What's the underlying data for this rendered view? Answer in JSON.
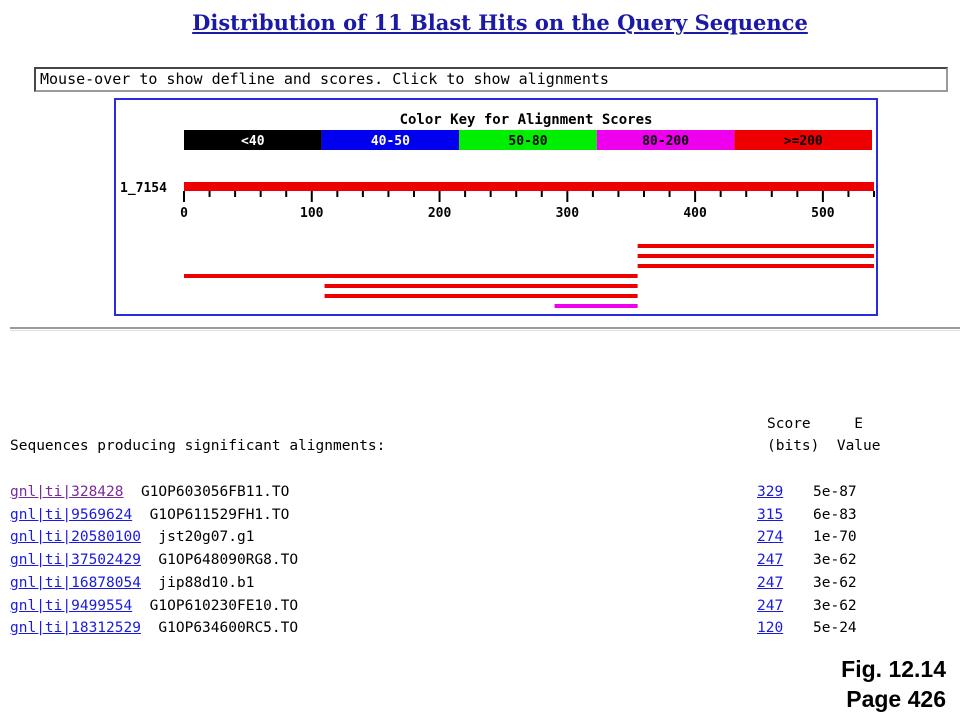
{
  "title": "Distribution of 11 Blast Hits on the Query Sequence",
  "defline_message": "Mouse-over to show defline and scores. Click to show alignments",
  "color_key": {
    "title": "Color Key for Alignment Scores",
    "bins": [
      {
        "label": "<40",
        "color": "#000000",
        "text_color": "#ffffff"
      },
      {
        "label": "40-50",
        "color": "#0000ee",
        "text_color": "#ffffff"
      },
      {
        "label": "50-80",
        "color": "#00ee00",
        "text_color": "#000000"
      },
      {
        "label": "80-200",
        "color": "#ee00ee",
        "text_color": "#000000"
      },
      {
        "label": ">=200",
        "color": "#ee0000",
        "text_color": "#000000"
      }
    ]
  },
  "query": {
    "label": "1_7154",
    "length": 540,
    "color": "#ee0000",
    "ticks": [
      "0",
      "100",
      "200",
      "300",
      "400",
      "500"
    ]
  },
  "hit_bars": [
    {
      "start": 355,
      "end": 540,
      "color": "#ee0000"
    },
    {
      "start": 355,
      "end": 540,
      "color": "#ee0000"
    },
    {
      "start": 355,
      "end": 540,
      "color": "#ee0000"
    },
    {
      "start": 0,
      "end": 355,
      "color": "#ee0000"
    },
    {
      "start": 110,
      "end": 355,
      "color": "#ee0000"
    },
    {
      "start": 110,
      "end": 355,
      "color": "#ee0000"
    },
    {
      "start": 290,
      "end": 355,
      "color": "#ee00ee"
    }
  ],
  "table": {
    "header_line1": "Score     E",
    "header_left": "Sequences producing significant alignments:",
    "header_line2": "(bits)  Value",
    "rows": [
      {
        "accession": "gnl|ti|328428",
        "description": "G1OP603056FB11.TO",
        "score": "329",
        "evalue": "5e-87",
        "visited": true
      },
      {
        "accession": "gnl|ti|9569624",
        "description": "G1OP611529FH1.TO",
        "score": "315",
        "evalue": "6e-83",
        "visited": false
      },
      {
        "accession": "gnl|ti|20580100",
        "description": "jst20g07.g1",
        "score": "274",
        "evalue": "1e-70",
        "visited": false
      },
      {
        "accession": "gnl|ti|37502429",
        "description": "G1OP648090RG8.TO",
        "score": "247",
        "evalue": "3e-62",
        "visited": false
      },
      {
        "accession": "gnl|ti|16878054",
        "description": "jip88d10.b1",
        "score": "247",
        "evalue": "3e-62",
        "visited": false
      },
      {
        "accession": "gnl|ti|9499554",
        "description": "G1OP610230FE10.TO",
        "score": "247",
        "evalue": "3e-62",
        "visited": false
      },
      {
        "accession": "gnl|ti|18312529",
        "description": "G1OP634600RC5.TO",
        "score": "120",
        "evalue": "5e-24",
        "visited": false
      }
    ]
  },
  "figure": {
    "fig_label": "Fig. 12.14",
    "page_label": "Page 426"
  }
}
